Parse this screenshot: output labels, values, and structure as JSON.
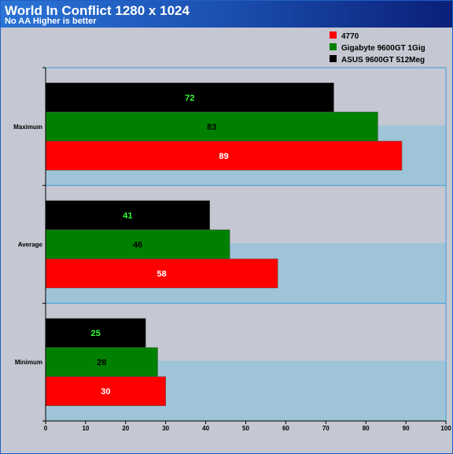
{
  "header": {
    "title": "World In Conflict 1280 x 1024",
    "subtitle": "No AA Higher is better"
  },
  "chart_data": {
    "type": "bar",
    "orientation": "horizontal",
    "categories": [
      "Maximum",
      "Average",
      "Minimum"
    ],
    "series": [
      {
        "name": "4770",
        "color": "#ff0000",
        "label_color": "#ffffff",
        "values": [
          89,
          58,
          30
        ]
      },
      {
        "name": "Gigabyte 9600GT 1Gig",
        "color": "#008000",
        "label_color": "#000000",
        "values": [
          83,
          46,
          28
        ]
      },
      {
        "name": "ASUS 9600GT 512Meg",
        "color": "#000000",
        "label_color": "#33ff33",
        "values": [
          72,
          41,
          25
        ]
      }
    ],
    "xlim": [
      0,
      100
    ],
    "x_ticks": [
      "0",
      "10",
      "20",
      "30",
      "40",
      "50",
      "60",
      "70",
      "80",
      "90",
      "100"
    ],
    "legend_position": "top-right",
    "colors": {
      "plot_band": "#9fc4d8",
      "plot_gap": "#c5c7d2",
      "gridline": "#3aa0d6"
    }
  }
}
